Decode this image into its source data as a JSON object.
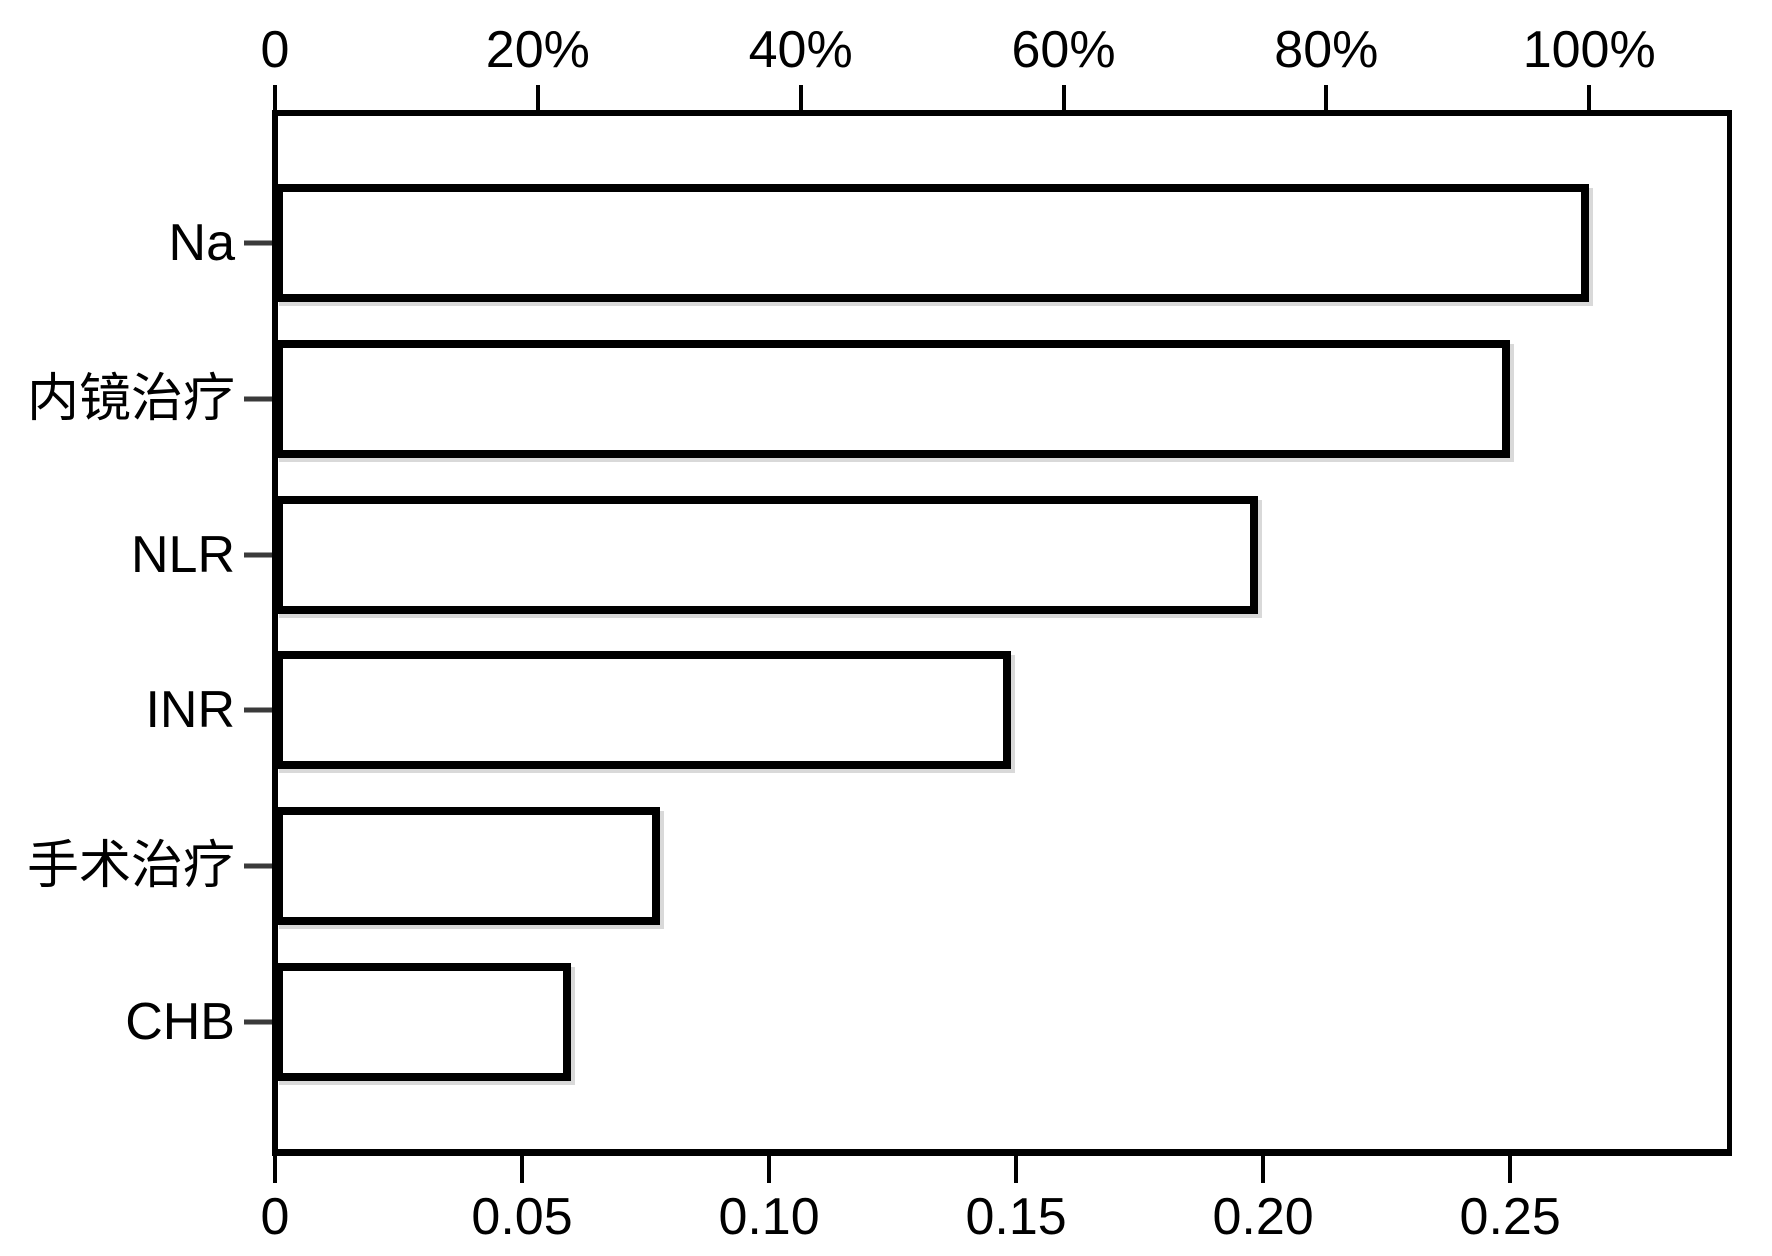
{
  "chart_data": {
    "type": "bar",
    "orientation": "horizontal",
    "title": "",
    "categories": [
      "Na",
      "内镜治疗",
      "NLR",
      "INR",
      "手术治疗",
      "CHB"
    ],
    "values": [
      0.266,
      0.25,
      0.199,
      0.149,
      0.078,
      0.06
    ],
    "percent_of_max": [
      100,
      94,
      75,
      56,
      29,
      22
    ],
    "top_axis": {
      "label": "",
      "tick_labels": [
        "0",
        "20%",
        "40%",
        "60%",
        "80%",
        "100%"
      ],
      "tick_percent_values": [
        0,
        20,
        40,
        60,
        80,
        100
      ],
      "percent_100_equals_raw_value": 0.266
    },
    "bottom_axis": {
      "label": "",
      "tick_labels": [
        "0",
        "0.05",
        "0.10",
        "0.15",
        "0.20",
        "0.25"
      ],
      "tick_values": [
        0,
        0.05,
        0.1,
        0.15,
        0.2,
        0.25
      ]
    },
    "x_range_raw": [
      0,
      0.2945
    ],
    "grid": false,
    "legend": null,
    "colors": {
      "background": "#ffffff",
      "bar_fill": "#ffffff",
      "bar_border": "#000000",
      "axis": "#000000",
      "text": "#000000"
    }
  }
}
